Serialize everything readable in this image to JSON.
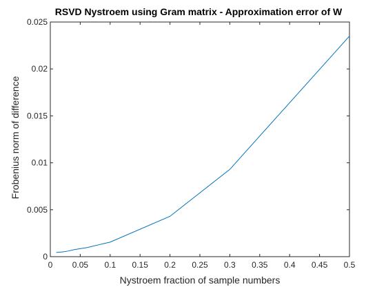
{
  "colors": {
    "line": "#0072BD",
    "axes": "#262626",
    "background": "#FFFFFF"
  },
  "chart_data": {
    "type": "line",
    "title": "RSVD Nystroem using Gram matrix - Approximation error of W",
    "xlabel": "Nystroem fraction of sample numbers",
    "ylabel": "Frobenius norm of difference",
    "xlim": [
      0,
      0.5
    ],
    "ylim": [
      0,
      0.025
    ],
    "grid": false,
    "x_ticks": [
      "0",
      "0.05",
      "0.1",
      "0.15",
      "0.2",
      "0.25",
      "0.3",
      "0.35",
      "0.4",
      "0.45",
      "0.5"
    ],
    "x_tick_values": [
      0,
      0.05,
      0.1,
      0.15,
      0.2,
      0.25,
      0.3,
      0.35,
      0.4,
      0.45,
      0.5
    ],
    "y_ticks": [
      "0",
      "0.005",
      "0.01",
      "0.015",
      "0.02",
      "0.025"
    ],
    "y_tick_values": [
      0,
      0.005,
      0.01,
      0.015,
      0.02,
      0.025
    ],
    "series": [
      {
        "x": [
          0.01,
          0.02,
          0.03,
          0.04,
          0.05,
          0.06,
          0.07,
          0.08,
          0.09,
          0.1,
          0.2,
          0.3,
          0.4,
          0.5
        ],
        "y": [
          0.00045,
          0.0005,
          0.0006,
          0.00075,
          0.00085,
          0.00095,
          0.0011,
          0.00125,
          0.0014,
          0.00155,
          0.0043,
          0.0093,
          0.0164,
          0.0235
        ]
      }
    ]
  }
}
